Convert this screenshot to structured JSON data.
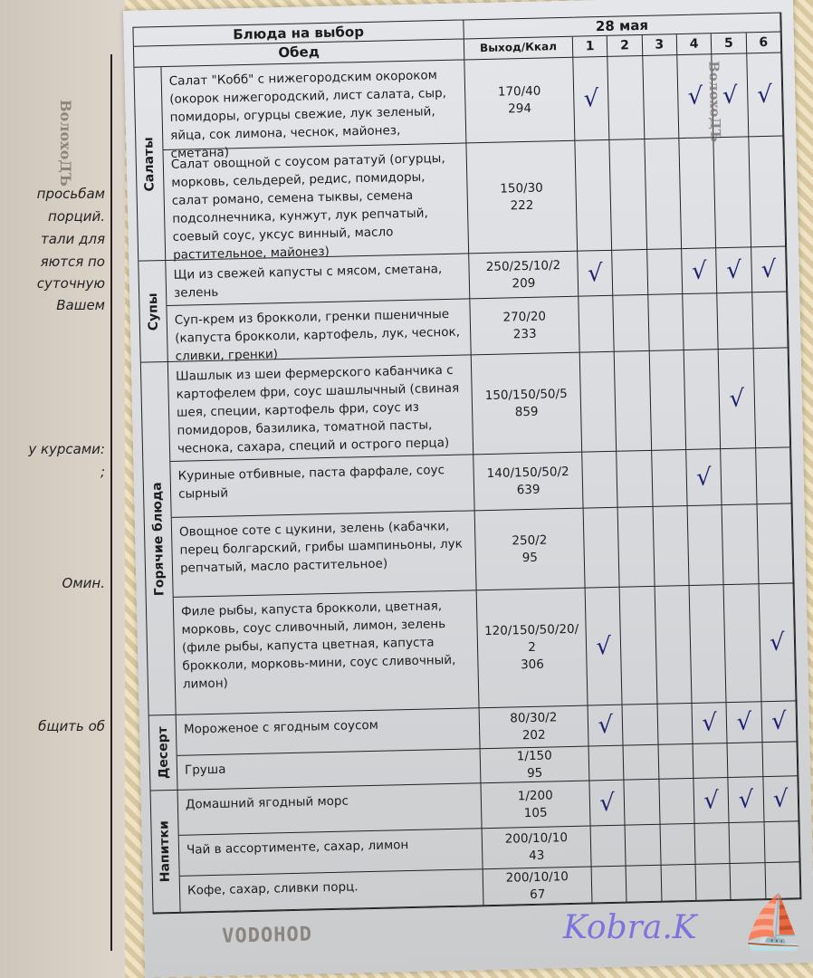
{
  "left_page": {
    "lines": [
      "просьбам",
      "порций.",
      "тали для",
      "яются по",
      "суточную",
      "Вашем",
      "у курсами:",
      ";",
      "Омин.",
      "бщить об"
    ],
    "stamp": "ВолохоДЪ"
  },
  "menu": {
    "title": "Блюда на выбор",
    "subtitle": "Обед",
    "date": "28 мая",
    "weight_header": "Выход/Ккал",
    "columns": [
      "1",
      "2",
      "3",
      "4",
      "5",
      "6"
    ],
    "check_color": "#1d2170",
    "categories": [
      {
        "label": "Салаты",
        "rows": 2
      },
      {
        "label": "Супы",
        "rows": 2
      },
      {
        "label": "Горячие блюда",
        "rows": 4
      },
      {
        "label": "Десерт",
        "rows": 2
      },
      {
        "label": "Напитки",
        "rows": 3
      }
    ],
    "rows": [
      {
        "dish": "Салат \"Кобб\" с нижегородским окороком (окорок нижегородский, лист салата, сыр, помидоры, огурцы свежие, лук зеленый, яйца, сок лимона, чеснок, майонез, сметана)",
        "weight": "170/40",
        "kcal": "294",
        "checks": [
          1,
          4,
          5,
          6
        ]
      },
      {
        "dish": "Салат овощной с соусом рататуй (огурцы, морковь, сельдерей, редис, помидоры, салат романо, семена тыквы, семена подсолнечника, кунжут, лук репчатый, соевый соус, уксус винный, масло растительное, майонез)",
        "weight": "150/30",
        "kcal": "222",
        "checks": []
      },
      {
        "dish": "Щи из свежей капусты с мясом, сметана, зелень",
        "weight": "250/25/10/2",
        "kcal": "209",
        "checks": [
          1,
          4,
          5,
          6
        ]
      },
      {
        "dish": "Суп-крем из брокколи, гренки пшеничные (капуста брокколи, картофель, лук, чеснок, сливки, гренки)",
        "weight": "270/20",
        "kcal": "233",
        "checks": []
      },
      {
        "dish": "Шашлык из шеи фермерского кабанчика с картофелем фри, соус шашлычный (свиная шея, специи, картофель фри, соус из помидоров, базилика, томатной пасты, чеснока, сахара, специй и острого перца)",
        "weight": "150/150/50/5",
        "kcal": "859",
        "checks": [
          5
        ]
      },
      {
        "dish": "Куриные отбивные, паста фарфале, соус сырный",
        "weight": "140/150/50/2",
        "kcal": "639",
        "checks": [
          4
        ]
      },
      {
        "dish": "Овощное соте с цукини, зелень (кабачки, перец болгарский, грибы шампиньоны, лук репчатый, масло растительное)",
        "weight": "250/2",
        "kcal": "95",
        "checks": []
      },
      {
        "dish": "Филе рыбы, капуста брокколи, цветная, морковь, соус сливочный, лимон, зелень (филе рыбы, капуста цветная, капуста брокколи, морковь-мини, соус сливочный, лимон)",
        "weight": "120/150/50/20/2",
        "kcal": "306",
        "checks": [
          1,
          6
        ]
      },
      {
        "dish": "Мороженое с ягодным соусом",
        "weight": "80/30/2",
        "kcal": "202",
        "checks": [
          1,
          4,
          5,
          6
        ]
      },
      {
        "dish": "Груша",
        "weight": "1/150",
        "kcal": "95",
        "checks": []
      },
      {
        "dish": "Домашний ягодный морс",
        "weight": "1/200",
        "kcal": "105",
        "checks": [
          1,
          4,
          5,
          6
        ]
      },
      {
        "dish": "Чай в ассортименте, сахар, лимон",
        "weight": "200/10/10",
        "kcal": "43",
        "checks": []
      },
      {
        "dish": "Кофе, сахар, сливки порц.",
        "weight": "200/10/10",
        "kcal": "67",
        "checks": []
      }
    ],
    "check_glyph": "√"
  },
  "stamps": {
    "bottom": "VODOHOD",
    "side": "ВолохоДЪ"
  },
  "watermark": "Kobra.K"
}
